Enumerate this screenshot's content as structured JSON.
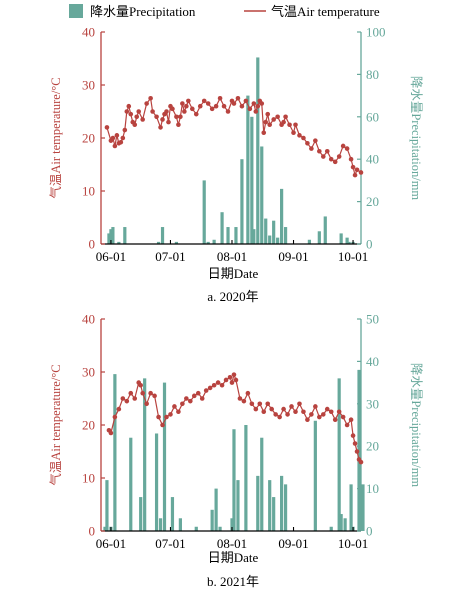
{
  "legend": {
    "precip_label": "降水量Precipitation",
    "temp_label": "气温Air temperature"
  },
  "colors": {
    "temperature": "#b8433f",
    "precipitation": "#67a89b",
    "axis": "#000000"
  },
  "chart_data": [
    {
      "type": "bar+line",
      "subtitle": "a. 2020年",
      "xlabel": "日期Date",
      "ylabel_left": "气温Air temperature/°C",
      "ylabel_right": "降水量Precipitation/mm",
      "ylim_left": [
        0,
        40
      ],
      "ylim_right": [
        0,
        100
      ],
      "yticks_left": [
        0,
        10,
        20,
        30,
        40
      ],
      "yticks_right": [
        0,
        20,
        40,
        60,
        80,
        100
      ],
      "xticks": [
        "06-01",
        "07-01",
        "08-01",
        "09-01",
        "10-01"
      ],
      "x_start": "06-01",
      "date_range": [
        "05-27",
        "10-05"
      ],
      "grid": false,
      "legend_position": "top",
      "precipitation": [
        {
          "date": "05-31",
          "value": 5
        },
        {
          "date": "06-01",
          "value": 7
        },
        {
          "date": "06-02",
          "value": 8
        },
        {
          "date": "06-05",
          "value": 1
        },
        {
          "date": "06-08",
          "value": 8
        },
        {
          "date": "06-25",
          "value": 1
        },
        {
          "date": "06-27",
          "value": 8
        },
        {
          "date": "07-04",
          "value": 1
        },
        {
          "date": "07-18",
          "value": 30
        },
        {
          "date": "07-20",
          "value": 1
        },
        {
          "date": "07-23",
          "value": 2
        },
        {
          "date": "07-27",
          "value": 15
        },
        {
          "date": "07-30",
          "value": 8
        },
        {
          "date": "08-03",
          "value": 8
        },
        {
          "date": "08-06",
          "value": 40
        },
        {
          "date": "08-09",
          "value": 70
        },
        {
          "date": "08-11",
          "value": 60
        },
        {
          "date": "08-12",
          "value": 7
        },
        {
          "date": "08-14",
          "value": 88
        },
        {
          "date": "08-16",
          "value": 46
        },
        {
          "date": "08-18",
          "value": 12
        },
        {
          "date": "08-20",
          "value": 4
        },
        {
          "date": "08-22",
          "value": 11
        },
        {
          "date": "08-24",
          "value": 3
        },
        {
          "date": "08-26",
          "value": 26
        },
        {
          "date": "08-28",
          "value": 8
        },
        {
          "date": "09-09",
          "value": 2
        },
        {
          "date": "09-14",
          "value": 6
        },
        {
          "date": "09-17",
          "value": 13
        },
        {
          "date": "09-25",
          "value": 5
        },
        {
          "date": "09-28",
          "value": 3
        },
        {
          "date": "09-29",
          "value": 1
        },
        {
          "date": "10-01",
          "value": 1
        }
      ],
      "temperature": {
        "dates": [
          "05-30",
          "06-01",
          "06-02",
          "06-03",
          "06-04",
          "06-05",
          "06-06",
          "06-07",
          "06-08",
          "06-09",
          "06-10",
          "06-11",
          "06-12",
          "06-13",
          "06-14",
          "06-15",
          "06-17",
          "06-19",
          "06-21",
          "06-22",
          "06-24",
          "06-26",
          "06-27",
          "06-28",
          "06-29",
          "06-30",
          "07-01",
          "07-02",
          "07-04",
          "07-05",
          "07-06",
          "07-07",
          "07-08",
          "07-09",
          "07-10",
          "07-12",
          "07-14",
          "07-16",
          "07-18",
          "07-20",
          "07-22",
          "07-24",
          "07-26",
          "07-28",
          "07-30",
          "08-01",
          "08-02",
          "08-04",
          "08-06",
          "08-08",
          "08-10",
          "08-12",
          "08-13",
          "08-14",
          "08-15",
          "08-16",
          "08-17",
          "08-18",
          "08-19",
          "08-20",
          "08-22",
          "08-24",
          "08-26",
          "08-27",
          "08-28",
          "08-30",
          "09-01",
          "09-02",
          "09-04",
          "09-06",
          "09-08",
          "09-10",
          "09-12",
          "09-14",
          "09-16",
          "09-18",
          "09-20",
          "09-22",
          "09-24",
          "09-26",
          "09-28",
          "09-30",
          "10-01",
          "10-02",
          "10-03",
          "10-05"
        ],
        "values": [
          22.0,
          19.5,
          20.0,
          18.5,
          20.5,
          19.0,
          19.2,
          20.0,
          21.5,
          25.0,
          26.0,
          24.5,
          23.0,
          22.5,
          24.0,
          25.0,
          23.5,
          26.5,
          27.5,
          25.0,
          24.0,
          22.0,
          23.5,
          24.5,
          25.0,
          23.0,
          26.0,
          25.5,
          24.0,
          22.5,
          24.0,
          26.5,
          25.0,
          26.0,
          27.0,
          25.5,
          24.5,
          26.0,
          27.0,
          26.5,
          25.5,
          26.0,
          27.5,
          26.0,
          25.0,
          27.0,
          26.5,
          27.5,
          26.0,
          27.0,
          25.5,
          26.5,
          25.0,
          26.0,
          27.0,
          26.5,
          21.0,
          23.0,
          24.5,
          22.5,
          23.5,
          24.0,
          22.5,
          23.0,
          24.0,
          22.5,
          21.0,
          22.5,
          20.5,
          20.0,
          19.0,
          18.0,
          19.5,
          17.5,
          16.5,
          17.5,
          16.0,
          15.5,
          16.5,
          18.5,
          18.0,
          16.0,
          14.5,
          13.0,
          14.0,
          13.5
        ]
      }
    },
    {
      "type": "bar+line",
      "subtitle": "b. 2021年",
      "xlabel": "日期Date",
      "ylabel_left": "气温Air temperature/°C",
      "ylabel_right": "降水量Precipitation/mm",
      "ylim_left": [
        0,
        40
      ],
      "ylim_right": [
        0,
        50
      ],
      "yticks_left": [
        0,
        10,
        20,
        30,
        40
      ],
      "yticks_right": [
        0,
        10,
        20,
        30,
        40,
        50
      ],
      "xticks": [
        "06-01",
        "07-01",
        "08-01",
        "09-01",
        "10-01"
      ],
      "x_start": "06-01",
      "date_range": [
        "05-27",
        "10-05"
      ],
      "grid": false,
      "legend_position": "top",
      "precipitation": [
        {
          "date": "05-29",
          "value": 1
        },
        {
          "date": "05-30",
          "value": 12
        },
        {
          "date": "06-01",
          "value": 1
        },
        {
          "date": "06-03",
          "value": 37
        },
        {
          "date": "06-11",
          "value": 22
        },
        {
          "date": "06-16",
          "value": 8
        },
        {
          "date": "06-18",
          "value": 36
        },
        {
          "date": "06-24",
          "value": 23
        },
        {
          "date": "06-26",
          "value": 3
        },
        {
          "date": "06-28",
          "value": 35
        },
        {
          "date": "07-02",
          "value": 8
        },
        {
          "date": "07-06",
          "value": 3
        },
        {
          "date": "07-14",
          "value": 1
        },
        {
          "date": "07-22",
          "value": 5
        },
        {
          "date": "07-24",
          "value": 10
        },
        {
          "date": "07-26",
          "value": 1
        },
        {
          "date": "08-01",
          "value": 3
        },
        {
          "date": "08-02",
          "value": 24
        },
        {
          "date": "08-04",
          "value": 12
        },
        {
          "date": "08-08",
          "value": 25
        },
        {
          "date": "08-14",
          "value": 13
        },
        {
          "date": "08-16",
          "value": 22
        },
        {
          "date": "08-20",
          "value": 12
        },
        {
          "date": "08-22",
          "value": 8
        },
        {
          "date": "08-26",
          "value": 13
        },
        {
          "date": "08-28",
          "value": 11
        },
        {
          "date": "09-12",
          "value": 26
        },
        {
          "date": "09-20",
          "value": 1
        },
        {
          "date": "09-24",
          "value": 36
        },
        {
          "date": "09-25",
          "value": 4
        },
        {
          "date": "09-27",
          "value": 3
        },
        {
          "date": "09-30",
          "value": 11
        },
        {
          "date": "10-01",
          "value": 1
        },
        {
          "date": "10-04",
          "value": 38
        },
        {
          "date": "10-06",
          "value": 11
        }
      ],
      "temperature": {
        "dates": [
          "05-31",
          "06-01",
          "06-03",
          "06-05",
          "06-07",
          "06-09",
          "06-11",
          "06-13",
          "06-15",
          "06-16",
          "06-17",
          "06-19",
          "06-21",
          "06-23",
          "06-25",
          "06-27",
          "06-29",
          "07-01",
          "07-03",
          "07-05",
          "07-07",
          "07-09",
          "07-11",
          "07-13",
          "07-15",
          "07-17",
          "07-19",
          "07-21",
          "07-23",
          "07-25",
          "07-27",
          "07-29",
          "07-31",
          "08-01",
          "08-02",
          "08-03",
          "08-05",
          "08-07",
          "08-09",
          "08-11",
          "08-13",
          "08-15",
          "08-17",
          "08-19",
          "08-21",
          "08-23",
          "08-25",
          "08-27",
          "08-29",
          "08-31",
          "09-02",
          "09-04",
          "09-06",
          "09-08",
          "09-10",
          "09-12",
          "09-14",
          "09-16",
          "09-18",
          "09-20",
          "09-22",
          "09-24",
          "09-26",
          "09-28",
          "09-30",
          "10-01",
          "10-02",
          "10-03",
          "10-04",
          "10-05"
        ],
        "values": [
          19.0,
          18.5,
          21.5,
          23.0,
          25.0,
          24.5,
          26.0,
          25.0,
          28.0,
          27.5,
          26.0,
          24.0,
          26.0,
          25.5,
          21.5,
          20.0,
          21.5,
          22.0,
          23.5,
          22.5,
          24.0,
          25.0,
          24.5,
          25.5,
          26.0,
          25.0,
          26.5,
          27.0,
          27.5,
          28.0,
          27.5,
          28.5,
          29.0,
          28.0,
          29.5,
          28.5,
          25.0,
          24.5,
          26.0,
          24.0,
          23.0,
          24.0,
          22.5,
          24.0,
          23.0,
          22.0,
          21.5,
          23.0,
          22.0,
          23.5,
          22.5,
          24.0,
          22.5,
          21.0,
          22.0,
          23.5,
          21.5,
          22.0,
          23.0,
          22.5,
          21.0,
          22.5,
          21.5,
          20.0,
          21.0,
          18.0,
          16.5,
          15.0,
          13.5,
          13.0
        ]
      }
    }
  ]
}
